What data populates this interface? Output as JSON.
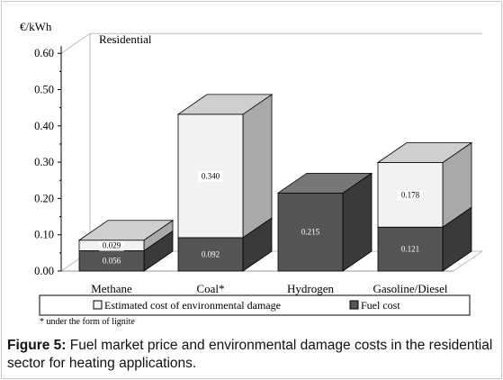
{
  "caption": {
    "label": "Figure 5:",
    "text": " Fuel market price and environmental damage costs in the residential sector for heating applications."
  },
  "footnote": "* under the form of lignite",
  "chart_data": {
    "type": "bar",
    "stacked": true,
    "three_d": true,
    "title": "Residential",
    "ylabel": "€/kWh",
    "xlabel": "",
    "ylim": [
      0,
      0.6
    ],
    "yticks": [
      "0.00",
      "0.10",
      "0.20",
      "0.30",
      "0.40",
      "0.50",
      "0.60"
    ],
    "categories": [
      "Methane",
      "Coal*",
      "Hydrogen",
      "Gasoline/Diesel"
    ],
    "series": [
      {
        "name": "Fuel cost",
        "color": "#555555",
        "values": [
          0.056,
          0.092,
          0.215,
          0.121
        ],
        "labels": [
          "0.056",
          "0.092",
          "0.215",
          "0.121"
        ]
      },
      {
        "name": "Estimated cost of environmental damage",
        "color": "#f2f2f2",
        "values": [
          0.029,
          0.34,
          0,
          0.178
        ],
        "labels": [
          "0.029",
          "0.340",
          "",
          "0.178"
        ]
      }
    ],
    "legend": {
      "position": "bottom",
      "order": [
        1,
        0
      ]
    },
    "grid": false
  }
}
